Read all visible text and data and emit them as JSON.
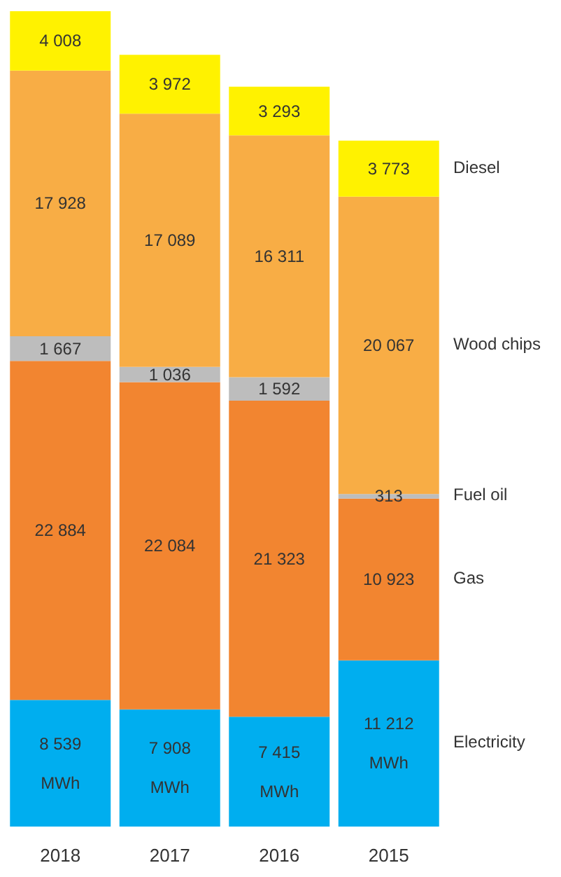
{
  "chart_data": {
    "type": "bar",
    "categories": [
      "2018",
      "2017",
      "2016",
      "2015"
    ],
    "series": [
      {
        "name": "Electricity",
        "color": "#00aeef",
        "values": [
          8539,
          7908,
          7415,
          11212
        ],
        "value_labels": [
          "8 539\nMWh",
          "7 908\nMWh",
          "7 415\nMWh",
          "11 212\nMWh"
        ]
      },
      {
        "name": "Gas",
        "color": "#f28530",
        "values": [
          22884,
          22084,
          21323,
          10923
        ],
        "value_labels": [
          "22 884",
          "22 084",
          "21 323",
          "10 923"
        ]
      },
      {
        "name": "Fuel oil",
        "color": "#bdbdbd",
        "values": [
          1667,
          1036,
          1592,
          313
        ],
        "value_labels": [
          "1 667",
          "1 036",
          "1 592",
          "313"
        ]
      },
      {
        "name": "Wood chips",
        "color": "#f8ad45",
        "values": [
          17928,
          17089,
          16311,
          20067
        ],
        "value_labels": [
          "17 928",
          "17 089",
          "16 311",
          "20 067"
        ]
      },
      {
        "name": "Diesel",
        "color": "#fff200",
        "values": [
          4008,
          3972,
          3293,
          3773
        ],
        "value_labels": [
          "4 008",
          "3 972",
          "3 293",
          "3 773"
        ]
      }
    ],
    "stacked": true
  }
}
